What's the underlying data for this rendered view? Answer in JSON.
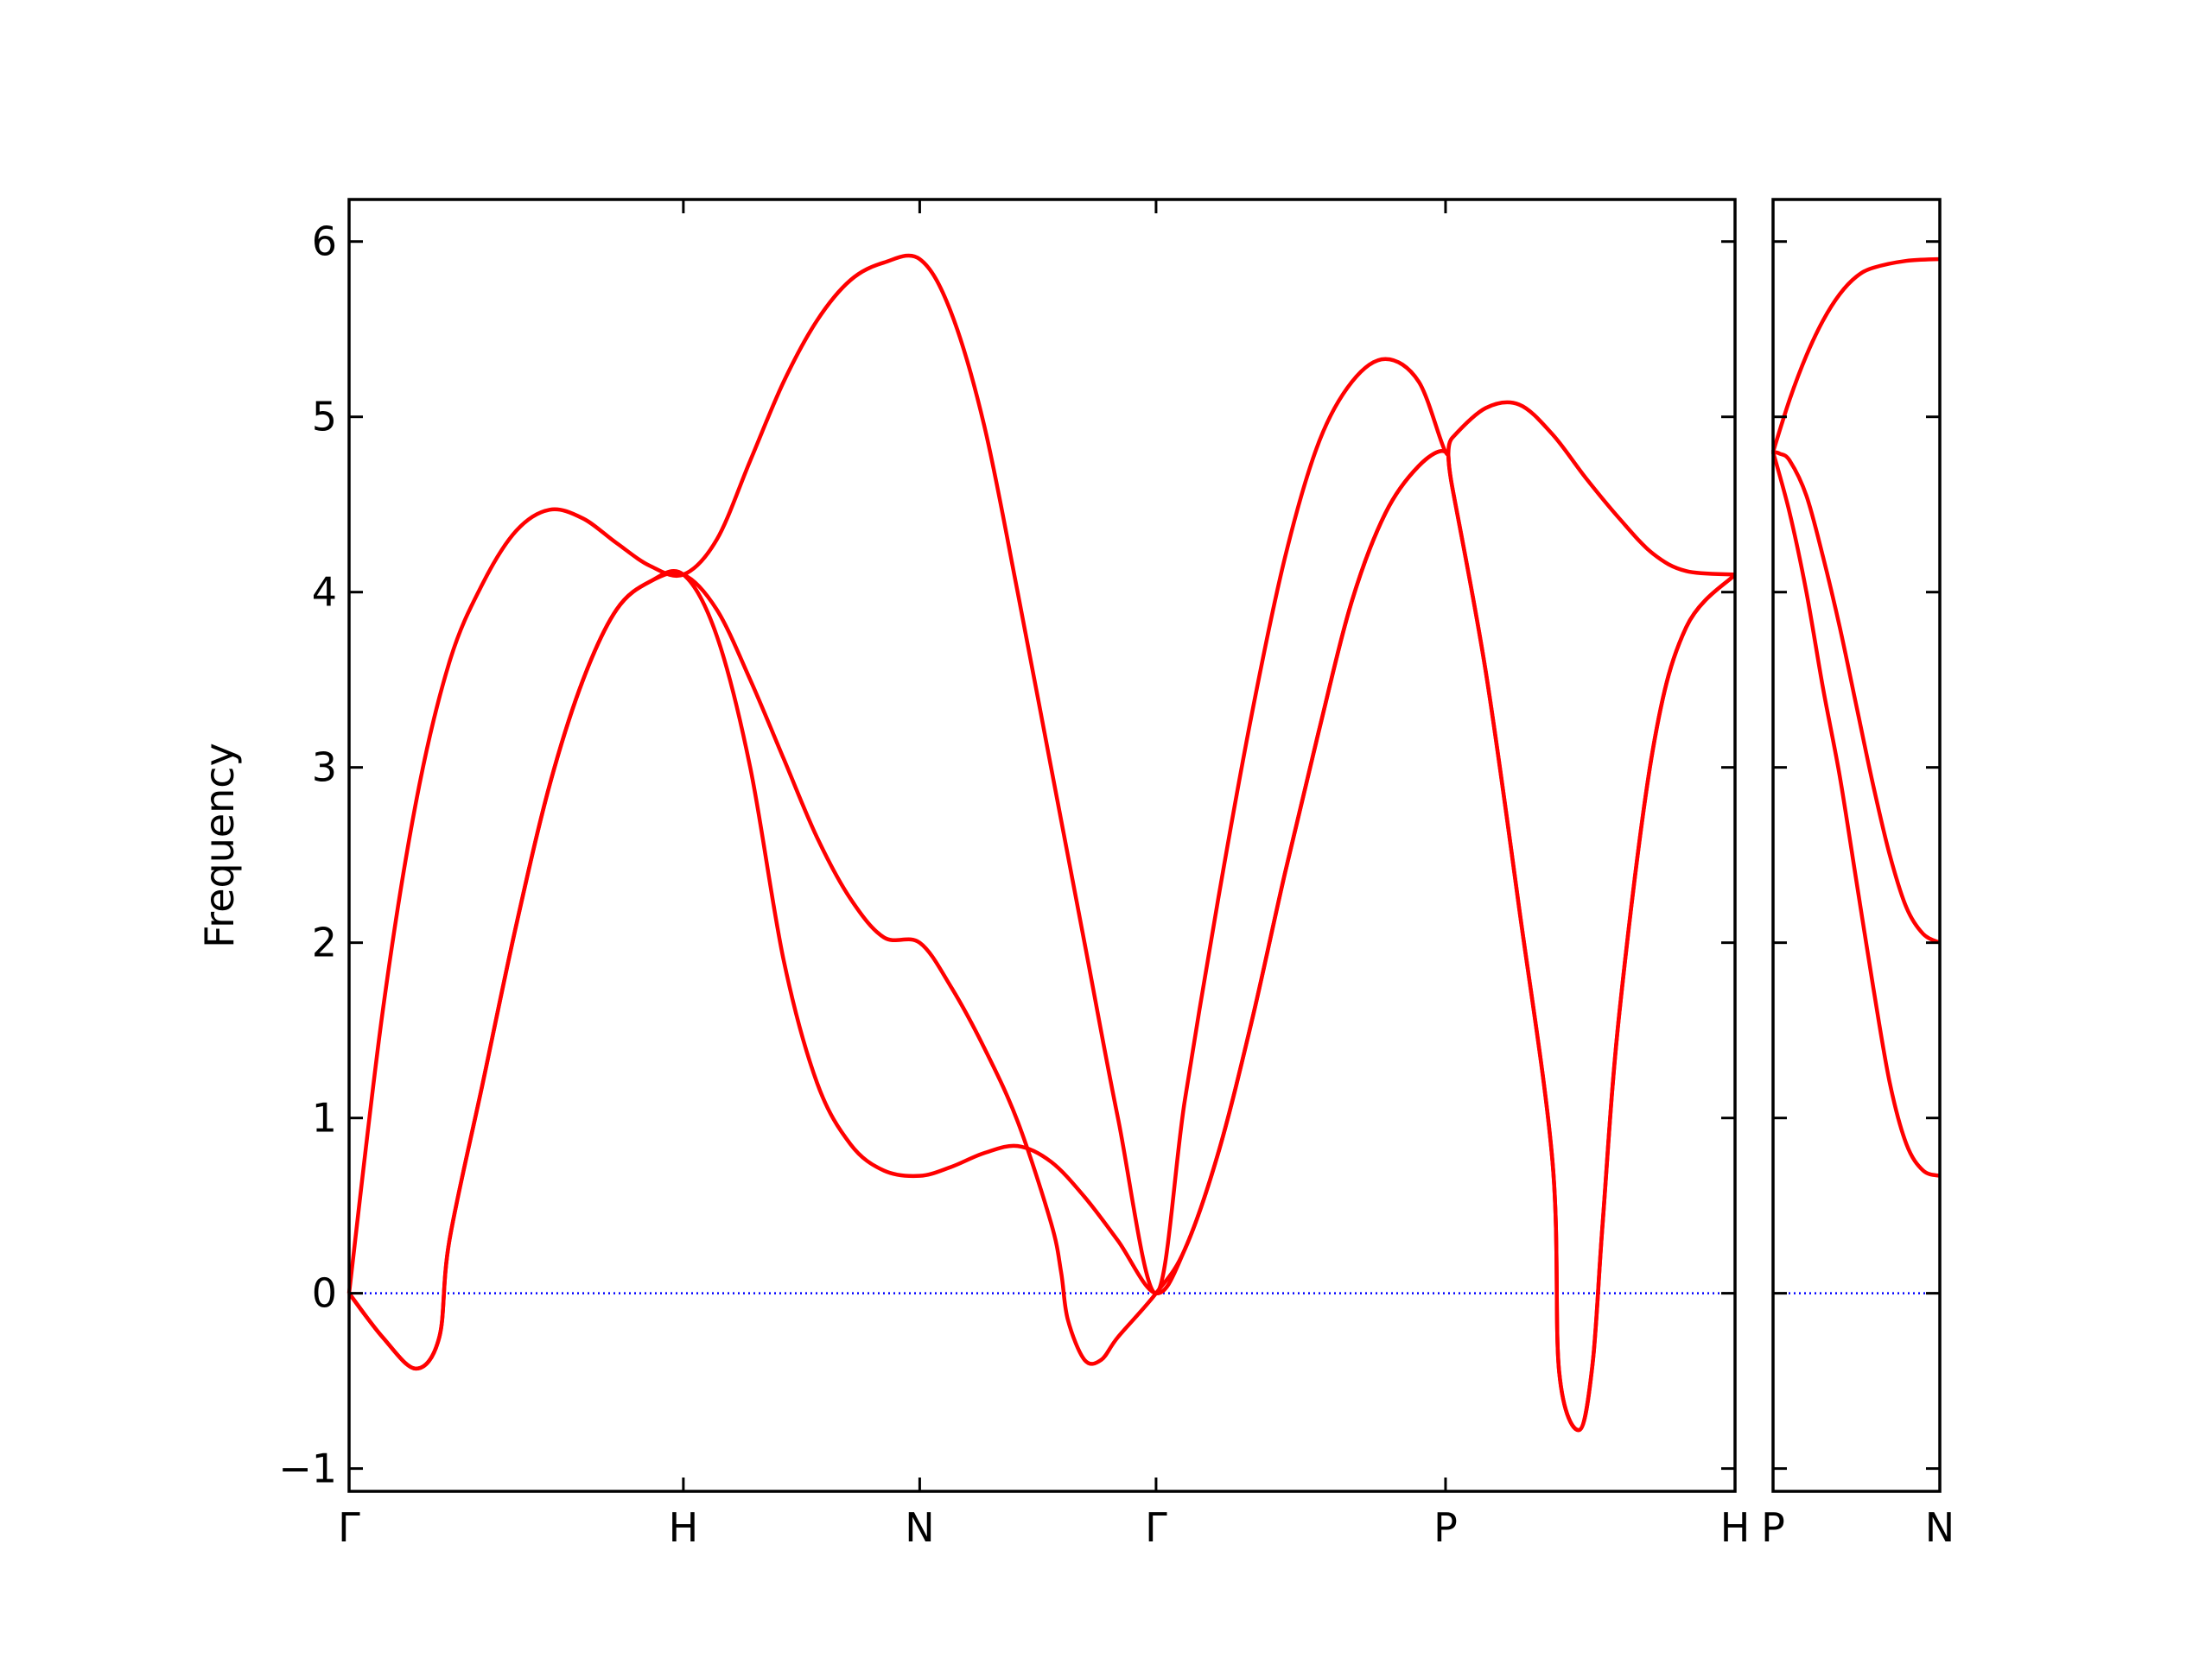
{
  "chart_data": [
    {
      "type": "line",
      "ylabel": "Frequency",
      "xlim": [
        0,
        4.146
      ],
      "xticks": [
        {
          "value": 0,
          "label": "Γ"
        },
        {
          "value": 1,
          "label": "H"
        },
        {
          "value": 1.707,
          "label": "N"
        },
        {
          "value": 2.414,
          "label": "Γ"
        },
        {
          "value": 3.28,
          "label": "P"
        },
        {
          "value": 4.146,
          "label": "H"
        }
      ],
      "ylim": [
        -1.13,
        6.24
      ],
      "yticks": [
        {
          "value": -1,
          "label": "−1"
        },
        0,
        1,
        2,
        3,
        4,
        5,
        6
      ],
      "ytick_labels": true,
      "zero_line": {
        "value": 0,
        "color": "#0000ff"
      },
      "series": [
        {
          "color": "#ff0000",
          "x": [
            0,
            0.1,
            0.2,
            0.3,
            0.4,
            0.5,
            0.6,
            0.7,
            0.8,
            0.9,
            1.0,
            1.1,
            1.2,
            1.3,
            1.4,
            1.5,
            1.6,
            1.707,
            1.8,
            1.9,
            2.0,
            2.1,
            2.2,
            2.3,
            2.414,
            2.5,
            2.6,
            2.7,
            2.8,
            2.9,
            3.0,
            3.1,
            3.2,
            3.28,
            3.3,
            3.4,
            3.5,
            3.6,
            3.7,
            3.8,
            3.9,
            4.0,
            4.146
          ],
          "values": [
            0,
            1.6,
            2.8,
            3.6,
            4.05,
            4.35,
            4.47,
            4.42,
            4.28,
            4.15,
            4.1,
            4.3,
            4.75,
            5.2,
            5.55,
            5.78,
            5.88,
            5.9,
            5.6,
            4.95,
            4.0,
            3.0,
            2.0,
            1.0,
            0,
            1.1,
            2.25,
            3.3,
            4.2,
            4.85,
            5.2,
            5.33,
            5.2,
            4.8,
            4.88,
            5.05,
            5.07,
            4.9,
            4.65,
            4.42,
            4.22,
            4.12,
            4.1
          ]
        },
        {
          "color": "#ff0000",
          "x": [
            0,
            0.1,
            0.2,
            0.27,
            0.3,
            0.4,
            0.5,
            0.6,
            0.7,
            0.8,
            0.9,
            1.0,
            1.1,
            1.2,
            1.3,
            1.4,
            1.5,
            1.6,
            1.707,
            1.8,
            1.9,
            2.0,
            2.1,
            2.13,
            2.15,
            2.2,
            2.25,
            2.3,
            2.414,
            2.5,
            2.6,
            2.7,
            2.8,
            2.9,
            3.0,
            3.1,
            3.2,
            3.28,
            3.3,
            3.4,
            3.5,
            3.6,
            3.62,
            3.68,
            3.72,
            3.75,
            3.8,
            3.9,
            4.0,
            4.146
          ],
          "values": [
            0,
            -0.25,
            -0.43,
            -0.25,
            0.3,
            1.2,
            2.1,
            2.9,
            3.5,
            3.9,
            4.06,
            4.1,
            3.9,
            3.5,
            3.05,
            2.6,
            2.25,
            2.03,
            2.0,
            1.75,
            1.4,
            0.98,
            0.4,
            0.12,
            -0.15,
            -0.38,
            -0.38,
            -0.25,
            0,
            0.25,
            0.8,
            1.55,
            2.4,
            3.2,
            3.95,
            4.45,
            4.72,
            4.8,
            4.6,
            3.55,
            2.2,
            0.75,
            -0.45,
            -0.78,
            -0.4,
            0.4,
            1.6,
            3.1,
            3.8,
            4.1
          ]
        },
        {
          "color": "#ff0000",
          "x": [
            0,
            0.1,
            0.2,
            0.27,
            0.3,
            0.4,
            0.5,
            0.6,
            0.7,
            0.8,
            0.9,
            1.0,
            1.1,
            1.2,
            1.3,
            1.4,
            1.5,
            1.6,
            1.707,
            1.8,
            1.9,
            2.0,
            2.1,
            2.2,
            2.3,
            2.414,
            2.5,
            2.6,
            2.7,
            2.8,
            2.9,
            3.0,
            3.1,
            3.2,
            3.28,
            3.3,
            3.4,
            3.5,
            3.6,
            3.62,
            3.68,
            3.72,
            3.75,
            3.8,
            3.9,
            4.0,
            4.146
          ],
          "values": [
            0,
            -0.25,
            -0.43,
            -0.25,
            0.3,
            1.2,
            2.1,
            2.9,
            3.5,
            3.9,
            4.06,
            4.1,
            3.75,
            3.0,
            1.9,
            1.2,
            0.85,
            0.7,
            0.67,
            0.72,
            0.8,
            0.84,
            0.75,
            0.55,
            0.3,
            0,
            0.25,
            0.8,
            1.55,
            2.4,
            3.2,
            3.95,
            4.45,
            4.72,
            4.8,
            4.6,
            3.55,
            2.2,
            0.75,
            -0.45,
            -0.78,
            -0.4,
            0.4,
            1.6,
            3.1,
            3.8,
            4.1
          ]
        }
      ]
    },
    {
      "type": "line",
      "xlim": [
        0,
        0.5
      ],
      "xticks": [
        {
          "value": 0,
          "label": "P"
        },
        {
          "value": 0.5,
          "label": "N"
        }
      ],
      "ylim": [
        -1.13,
        6.24
      ],
      "yticks": [
        -1,
        0,
        1,
        2,
        3,
        4,
        5,
        6
      ],
      "ytick_labels": false,
      "zero_line": {
        "value": 0,
        "color": "#0000ff"
      },
      "series": [
        {
          "color": "#ff0000",
          "x": [
            0,
            0.05,
            0.1,
            0.15,
            0.2,
            0.25,
            0.3,
            0.4,
            0.5
          ],
          "values": [
            4.8,
            5.1,
            5.35,
            5.55,
            5.7,
            5.8,
            5.85,
            5.89,
            5.9
          ]
        },
        {
          "color": "#ff0000",
          "x": [
            0,
            0.02,
            0.05,
            0.1,
            0.15,
            0.2,
            0.25,
            0.3,
            0.35,
            0.4,
            0.45,
            0.5
          ],
          "values": [
            4.8,
            4.79,
            4.75,
            4.55,
            4.2,
            3.8,
            3.35,
            2.9,
            2.5,
            2.2,
            2.05,
            2.0
          ]
        },
        {
          "color": "#ff0000",
          "x": [
            0,
            0.05,
            0.1,
            0.15,
            0.2,
            0.25,
            0.3,
            0.35,
            0.4,
            0.45,
            0.5
          ],
          "values": [
            4.8,
            4.45,
            4.0,
            3.45,
            2.95,
            2.35,
            1.75,
            1.2,
            0.85,
            0.7,
            0.67
          ]
        }
      ]
    }
  ]
}
